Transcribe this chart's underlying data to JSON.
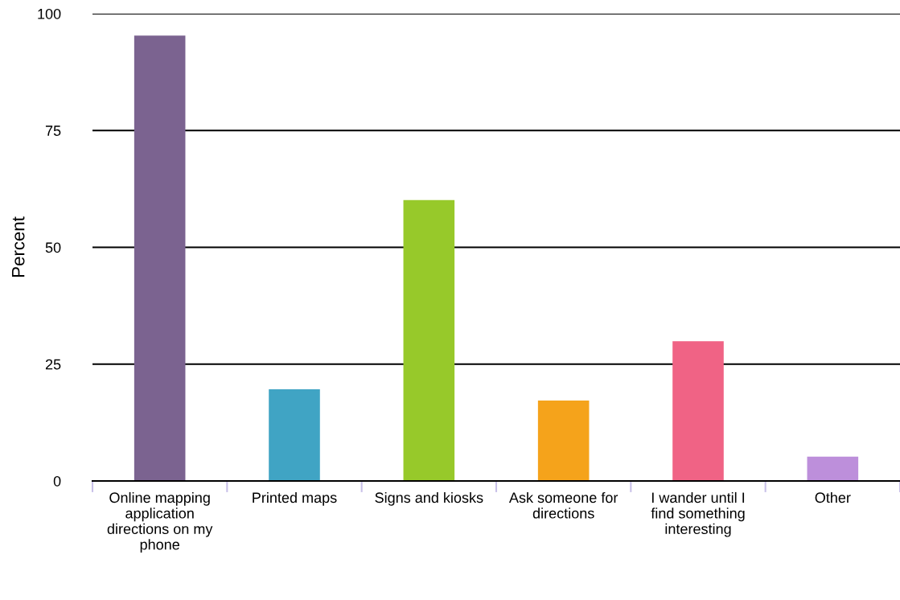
{
  "chart_data": {
    "type": "bar",
    "ylabel": "Percent",
    "categories": [
      "Online mapping application directions on my phone",
      "Printed maps",
      "Signs and kiosks",
      "Ask someone for directions",
      "I wander until I find something interesting",
      "Other"
    ],
    "values": [
      95.3,
      19.6,
      60.1,
      17.2,
      29.9,
      5.2
    ],
    "colors": [
      "#7b6390",
      "#40a4c4",
      "#97c92a",
      "#f5a31b",
      "#f06385",
      "#bd8fdb"
    ],
    "ylim": [
      0,
      100
    ],
    "yticks": [
      0,
      25,
      50,
      75,
      100
    ],
    "grid": "y",
    "legend": false
  }
}
